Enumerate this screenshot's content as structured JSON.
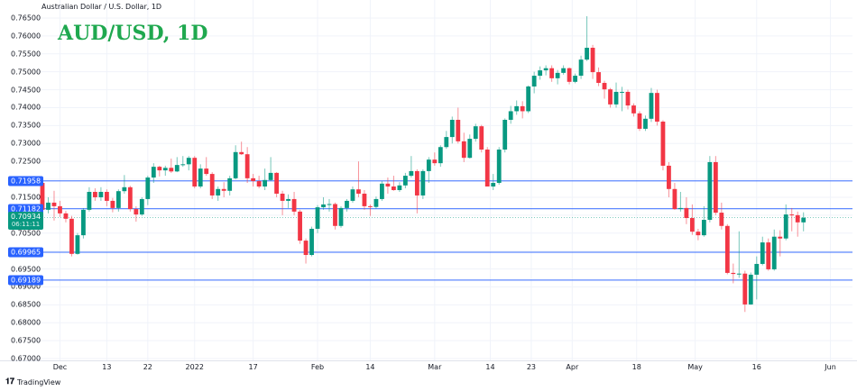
{
  "header": {
    "symbol_description": "Australian Dollar / U.S. Dollar, 1D",
    "title": "AUD/USD, 1D"
  },
  "footer": {
    "brand": "TradingView",
    "logo_icon": "tradingview-logo-icon"
  },
  "colors": {
    "up": "#089981",
    "down": "#f23645",
    "level_line": "#2962ff",
    "current_price": "#089981",
    "title": "#1fa84f"
  },
  "chart_data": {
    "type": "candlestick",
    "title": "AUD/USD, 1D",
    "ylim": [
      0.67,
      0.765
    ],
    "y_ticks": [
      "0.76500",
      "0.76000",
      "0.75500",
      "0.75000",
      "0.74500",
      "0.74000",
      "0.73500",
      "0.73000",
      "0.72500",
      "0.72000",
      "0.71500",
      "0.71000",
      "0.70500",
      "0.70000",
      "0.69500",
      "0.69000",
      "0.68500",
      "0.68000",
      "0.67500",
      "0.67000"
    ],
    "x_ticks": [
      "Dec",
      "13",
      "22",
      "2022",
      "17",
      "Feb",
      "14",
      "Mar",
      "14",
      "23",
      "Apr",
      "18",
      "May",
      "16",
      "Jun"
    ],
    "grid": true,
    "levels": [
      {
        "label": "0.71958",
        "value": 0.71958
      },
      {
        "label": "0.71182",
        "value": 0.71182
      },
      {
        "label": "0.69965",
        "value": 0.69965
      },
      {
        "label": "0.69189",
        "value": 0.69189
      }
    ],
    "current_price": {
      "label": "0.70934",
      "value": 0.70934,
      "countdown": "06:11:11"
    },
    "ohlc": [
      [
        0.719,
        0.7198,
        0.711,
        0.7115
      ],
      [
        0.7115,
        0.715,
        0.7105,
        0.7135
      ],
      [
        0.7135,
        0.7168,
        0.7085,
        0.7125
      ],
      [
        0.7125,
        0.714,
        0.7095,
        0.7105
      ],
      [
        0.7105,
        0.7112,
        0.708,
        0.709
      ],
      [
        0.709,
        0.7098,
        0.6985,
        0.6992
      ],
      [
        0.6992,
        0.705,
        0.699,
        0.7044
      ],
      [
        0.7044,
        0.712,
        0.7035,
        0.7115
      ],
      [
        0.7115,
        0.7178,
        0.711,
        0.7165
      ],
      [
        0.7165,
        0.7175,
        0.714,
        0.715
      ],
      [
        0.715,
        0.7178,
        0.714,
        0.7165
      ],
      [
        0.7165,
        0.7172,
        0.7125,
        0.714
      ],
      [
        0.714,
        0.7148,
        0.7108,
        0.712
      ],
      [
        0.712,
        0.7172,
        0.711,
        0.7167
      ],
      [
        0.7167,
        0.7212,
        0.716,
        0.7178
      ],
      [
        0.7178,
        0.7182,
        0.711,
        0.7117
      ],
      [
        0.7117,
        0.7125,
        0.7082,
        0.7102
      ],
      [
        0.7102,
        0.715,
        0.7098,
        0.7145
      ],
      [
        0.7145,
        0.721,
        0.7128,
        0.7205
      ],
      [
        0.7205,
        0.7245,
        0.719,
        0.7235
      ],
      [
        0.7235,
        0.7238,
        0.7208,
        0.7225
      ],
      [
        0.7225,
        0.7238,
        0.721,
        0.7232
      ],
      [
        0.7232,
        0.7258,
        0.7218,
        0.7222
      ],
      [
        0.7222,
        0.7262,
        0.722,
        0.724
      ],
      [
        0.724,
        0.7265,
        0.7235,
        0.7242
      ],
      [
        0.7242,
        0.7265,
        0.7225,
        0.726
      ],
      [
        0.726,
        0.7265,
        0.7175,
        0.718
      ],
      [
        0.718,
        0.7242,
        0.7175,
        0.723
      ],
      [
        0.723,
        0.7262,
        0.721,
        0.7215
      ],
      [
        0.7215,
        0.722,
        0.7145,
        0.7155
      ],
      [
        0.7155,
        0.718,
        0.714,
        0.7173
      ],
      [
        0.7173,
        0.7192,
        0.715,
        0.7168
      ],
      [
        0.7168,
        0.721,
        0.7155,
        0.7203
      ],
      [
        0.7203,
        0.7295,
        0.72,
        0.7276
      ],
      [
        0.7276,
        0.7305,
        0.7268,
        0.727
      ],
      [
        0.727,
        0.729,
        0.719,
        0.7203
      ],
      [
        0.7203,
        0.7215,
        0.718,
        0.7195
      ],
      [
        0.7195,
        0.721,
        0.7175,
        0.718
      ],
      [
        0.718,
        0.723,
        0.717,
        0.7198
      ],
      [
        0.7198,
        0.7262,
        0.7195,
        0.7218
      ],
      [
        0.7218,
        0.722,
        0.715,
        0.716
      ],
      [
        0.716,
        0.7168,
        0.71,
        0.714
      ],
      [
        0.714,
        0.7158,
        0.712,
        0.7145
      ],
      [
        0.7145,
        0.7165,
        0.71,
        0.711
      ],
      [
        0.711,
        0.7115,
        0.702,
        0.7029
      ],
      [
        0.7029,
        0.7035,
        0.6965,
        0.6989
      ],
      [
        0.6989,
        0.7068,
        0.6985,
        0.7062
      ],
      [
        0.7062,
        0.7128,
        0.705,
        0.7122
      ],
      [
        0.7122,
        0.715,
        0.7115,
        0.713
      ],
      [
        0.713,
        0.7145,
        0.711,
        0.7131
      ],
      [
        0.7131,
        0.7135,
        0.706,
        0.707
      ],
      [
        0.707,
        0.7125,
        0.7065,
        0.712
      ],
      [
        0.712,
        0.7145,
        0.711,
        0.714
      ],
      [
        0.714,
        0.718,
        0.7135,
        0.7172
      ],
      [
        0.7172,
        0.725,
        0.715,
        0.716
      ],
      [
        0.716,
        0.717,
        0.7115,
        0.7125
      ],
      [
        0.7125,
        0.713,
        0.7098,
        0.7123
      ],
      [
        0.7123,
        0.7152,
        0.7118,
        0.7145
      ],
      [
        0.7145,
        0.7195,
        0.714,
        0.7188
      ],
      [
        0.7188,
        0.7205,
        0.716,
        0.718
      ],
      [
        0.718,
        0.721,
        0.7168,
        0.717
      ],
      [
        0.717,
        0.7192,
        0.7165,
        0.7183
      ],
      [
        0.7183,
        0.7218,
        0.7175,
        0.721
      ],
      [
        0.721,
        0.7265,
        0.7205,
        0.7223
      ],
      [
        0.7223,
        0.7228,
        0.7105,
        0.7155
      ],
      [
        0.7155,
        0.7228,
        0.7145,
        0.7223
      ],
      [
        0.7223,
        0.7262,
        0.719,
        0.7255
      ],
      [
        0.7255,
        0.7275,
        0.7238,
        0.7245
      ],
      [
        0.7245,
        0.7295,
        0.7235,
        0.729
      ],
      [
        0.729,
        0.7335,
        0.7285,
        0.7318
      ],
      [
        0.7318,
        0.7375,
        0.73,
        0.7366
      ],
      [
        0.7366,
        0.74,
        0.73,
        0.7306
      ],
      [
        0.7306,
        0.733,
        0.7248,
        0.726
      ],
      [
        0.726,
        0.7325,
        0.7258,
        0.7313
      ],
      [
        0.7313,
        0.7355,
        0.7305,
        0.7348
      ],
      [
        0.7348,
        0.7352,
        0.7275,
        0.7283
      ],
      [
        0.7283,
        0.729,
        0.718,
        0.718
      ],
      [
        0.718,
        0.7215,
        0.717,
        0.719
      ],
      [
        0.719,
        0.729,
        0.7185,
        0.7283
      ],
      [
        0.7283,
        0.737,
        0.7275,
        0.7366
      ],
      [
        0.7366,
        0.7405,
        0.7355,
        0.739
      ],
      [
        0.739,
        0.742,
        0.738,
        0.7404
      ],
      [
        0.7404,
        0.7418,
        0.737,
        0.739
      ],
      [
        0.739,
        0.7462,
        0.7385,
        0.7459
      ],
      [
        0.7459,
        0.75,
        0.744,
        0.7489
      ],
      [
        0.7489,
        0.7515,
        0.7478,
        0.7504
      ],
      [
        0.7504,
        0.7518,
        0.749,
        0.751
      ],
      [
        0.751,
        0.7518,
        0.7472,
        0.7482
      ],
      [
        0.7482,
        0.7505,
        0.7465,
        0.7497
      ],
      [
        0.7497,
        0.7518,
        0.7492,
        0.751
      ],
      [
        0.751,
        0.7512,
        0.7465,
        0.7472
      ],
      [
        0.7472,
        0.7495,
        0.7468,
        0.7489
      ],
      [
        0.7489,
        0.7545,
        0.748,
        0.7534
      ],
      [
        0.7534,
        0.7655,
        0.753,
        0.7567
      ],
      [
        0.7567,
        0.7575,
        0.748,
        0.7499
      ],
      [
        0.7499,
        0.7512,
        0.746,
        0.7469
      ],
      [
        0.7469,
        0.7475,
        0.7425,
        0.7451
      ],
      [
        0.7451,
        0.7455,
        0.74,
        0.7409
      ],
      [
        0.7409,
        0.747,
        0.74,
        0.7444
      ],
      [
        0.7444,
        0.7458,
        0.739,
        0.7444
      ],
      [
        0.7444,
        0.745,
        0.7395,
        0.7406
      ],
      [
        0.7406,
        0.7412,
        0.7375,
        0.7384
      ],
      [
        0.7384,
        0.739,
        0.7335,
        0.7341
      ],
      [
        0.7341,
        0.7378,
        0.7335,
        0.7369
      ],
      [
        0.7369,
        0.7455,
        0.736,
        0.7441
      ],
      [
        0.7441,
        0.745,
        0.735,
        0.7361
      ],
      [
        0.7361,
        0.7365,
        0.7225,
        0.7238
      ],
      [
        0.7238,
        0.7248,
        0.715,
        0.7173
      ],
      [
        0.7173,
        0.719,
        0.7115,
        0.7117
      ],
      [
        0.7117,
        0.7165,
        0.711,
        0.712
      ],
      [
        0.712,
        0.715,
        0.7075,
        0.7092
      ],
      [
        0.7092,
        0.713,
        0.7045,
        0.7054
      ],
      [
        0.7054,
        0.7062,
        0.703,
        0.7044
      ],
      [
        0.7044,
        0.7125,
        0.704,
        0.7087
      ],
      [
        0.7087,
        0.7265,
        0.708,
        0.7248
      ],
      [
        0.7248,
        0.7265,
        0.71,
        0.7107
      ],
      [
        0.7107,
        0.7135,
        0.706,
        0.707
      ],
      [
        0.707,
        0.7075,
        0.6935,
        0.6939
      ],
      [
        0.6939,
        0.6965,
        0.691,
        0.6936
      ],
      [
        0.6936,
        0.7055,
        0.6925,
        0.6937
      ],
      [
        0.6937,
        0.6945,
        0.683,
        0.6851
      ],
      [
        0.6851,
        0.694,
        0.685,
        0.6934
      ],
      [
        0.6934,
        0.6985,
        0.6865,
        0.6964
      ],
      [
        0.6964,
        0.704,
        0.696,
        0.7024
      ],
      [
        0.7024,
        0.7035,
        0.6945,
        0.6949
      ],
      [
        0.6949,
        0.706,
        0.6945,
        0.704
      ],
      [
        0.704,
        0.7058,
        0.6985,
        0.7035
      ],
      [
        0.7035,
        0.713,
        0.703,
        0.7102
      ],
      [
        0.7102,
        0.712,
        0.7055,
        0.71
      ],
      [
        0.71,
        0.711,
        0.704,
        0.708
      ],
      [
        0.708,
        0.7108,
        0.7055,
        0.7093
      ]
    ]
  }
}
